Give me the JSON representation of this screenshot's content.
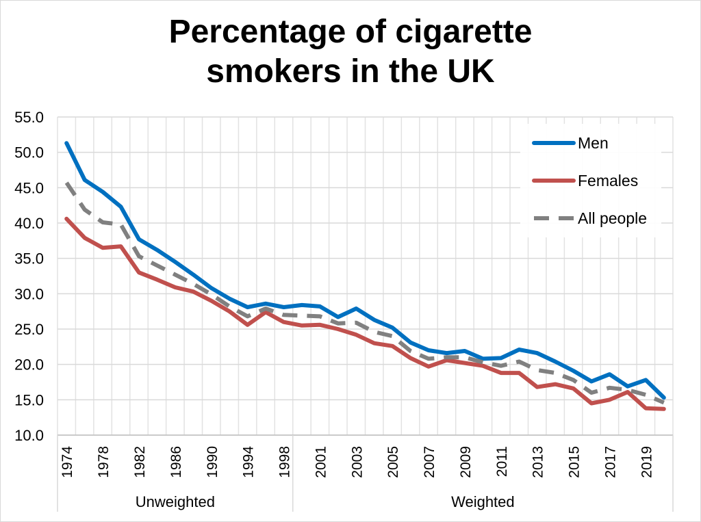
{
  "chart_data": {
    "type": "line",
    "title_lines": [
      "Percentage of cigarette",
      "smokers in the UK"
    ],
    "ylim": [
      10,
      55
    ],
    "y_ticks": [
      "10.0",
      "15.0",
      "20.0",
      "25.0",
      "30.0",
      "35.0",
      "40.0",
      "45.0",
      "50.0",
      "55.0"
    ],
    "x": [
      1974,
      1976,
      1978,
      1980,
      1982,
      1984,
      1986,
      1988,
      1990,
      1992,
      1994,
      1996,
      1998,
      2000,
      2001,
      2002,
      2003,
      2004,
      2005,
      2006,
      2007,
      2008,
      2009,
      2010,
      2011,
      2012,
      2013,
      2014,
      2015,
      2016,
      2017,
      2018,
      2019,
      2020
    ],
    "x_tick_labels": [
      "1974",
      "1978",
      "1982",
      "1986",
      "1990",
      "1994",
      "1998",
      "2001",
      "2003",
      "2005",
      "2007",
      "2009",
      "2011",
      "2013",
      "2015",
      "2017",
      "2019"
    ],
    "x_tick_indices": [
      0,
      2,
      4,
      6,
      8,
      10,
      12,
      14,
      16,
      18,
      20,
      22,
      24,
      26,
      28,
      30,
      32
    ],
    "groups": [
      {
        "label": "Unweighted",
        "start_index": 0,
        "end_index": 12
      },
      {
        "label": "Weighted",
        "start_index": 13,
        "end_index": 33
      }
    ],
    "series": [
      {
        "name": "Men",
        "color": "#0070c0",
        "dash": "solid",
        "values": [
          51.3,
          46.1,
          44.4,
          42.3,
          37.7,
          36.2,
          34.5,
          32.7,
          30.8,
          29.3,
          28.1,
          28.6,
          28.1,
          28.4,
          28.2,
          26.7,
          27.9,
          26.3,
          25.2,
          23.1,
          22.0,
          21.6,
          21.9,
          20.8,
          20.9,
          22.1,
          21.6,
          20.4,
          19.1,
          17.6,
          18.6,
          16.9,
          17.8,
          15.3
        ]
      },
      {
        "name": "Females",
        "color": "#c0504d",
        "dash": "solid",
        "values": [
          40.6,
          37.9,
          36.5,
          36.7,
          33.0,
          32.0,
          30.9,
          30.3,
          29.0,
          27.5,
          25.6,
          27.4,
          26.0,
          25.5,
          25.6,
          25.0,
          24.2,
          23.0,
          22.6,
          20.9,
          19.7,
          20.6,
          20.2,
          19.8,
          18.8,
          18.8,
          16.8,
          17.2,
          16.6,
          14.5,
          15.0,
          16.1,
          13.8,
          13.7
        ]
      },
      {
        "name": "All people",
        "color": "#808080",
        "dash": "dashed",
        "values": [
          45.7,
          41.9,
          40.1,
          39.8,
          35.3,
          34.0,
          32.7,
          31.4,
          29.9,
          28.2,
          26.8,
          27.9,
          27.0,
          26.9,
          26.8,
          25.8,
          25.9,
          24.6,
          24.0,
          21.9,
          20.8,
          21.0,
          21.0,
          20.3,
          19.8,
          20.4,
          19.2,
          18.8,
          17.8,
          16.0,
          16.7,
          16.4,
          15.7,
          14.6
        ]
      }
    ],
    "legend_position": "top-right",
    "grid": true
  }
}
